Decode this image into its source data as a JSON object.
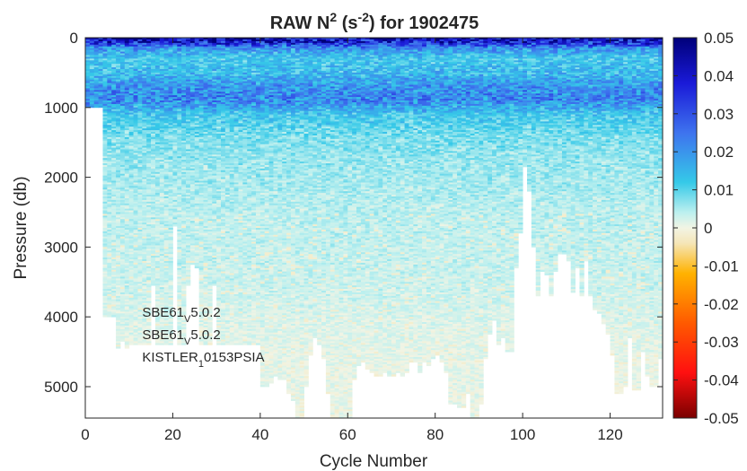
{
  "chart_data": {
    "type": "heatmap",
    "title_main": "RAW N",
    "title_sup1": "2",
    "title_paren_open": " (s",
    "title_sup2": "-2",
    "title_rest": ") for 1902475",
    "xlabel": "Cycle Number",
    "ylabel": "Pressure (db)",
    "xlim": [
      0,
      132
    ],
    "ylim": [
      0,
      5450
    ],
    "y_reversed": true,
    "x_ticks": [
      "0",
      "20",
      "40",
      "60",
      "80",
      "100",
      "120"
    ],
    "x_tick_values": [
      0,
      20,
      40,
      60,
      80,
      100,
      120
    ],
    "y_ticks": [
      "0",
      "1000",
      "2000",
      "3000",
      "4000",
      "5000"
    ],
    "y_tick_values": [
      0,
      1000,
      2000,
      3000,
      4000,
      5000
    ],
    "colorbar": {
      "range": [
        -0.05,
        0.05
      ],
      "colormap": "jet-like diverging (dark red - orange - cream - cyan - blue - dark navy)",
      "ticks": [
        "0.05",
        "0.04",
        "0.03",
        "0.02",
        "0.01",
        "0",
        "-0.01",
        "-0.02",
        "-0.03",
        "-0.04",
        "-0.05"
      ],
      "tick_values": [
        0.05,
        0.04,
        0.03,
        0.02,
        0.01,
        0,
        -0.01,
        -0.02,
        -0.03,
        -0.04,
        -0.05
      ]
    },
    "n2_profile_by_pressure": {
      "pressure": [
        0,
        50,
        150,
        300,
        500,
        700,
        900,
        1100,
        1400,
        1800,
        2500,
        3500,
        4500,
        5400
      ],
      "n2": [
        0.045,
        0.04,
        0.02,
        0.012,
        0.014,
        0.02,
        0.022,
        0.012,
        0.008,
        0.006,
        0.004,
        0.003,
        0.001,
        0.0005
      ]
    },
    "max_pressure_by_cycle": [
      1000,
      1000,
      1000,
      1000,
      4000,
      4000,
      4000,
      4450,
      4350,
      4450,
      4400,
      4400,
      4400,
      4400,
      4400,
      3550,
      4400,
      4400,
      4400,
      4400,
      2700,
      4400,
      4400,
      3550,
      3250,
      3300,
      4400,
      4400,
      4400,
      3550,
      4400,
      4400,
      4400,
      4400,
      4400,
      4400,
      4400,
      4400,
      4400,
      4400,
      5000,
      5000,
      4950,
      4850,
      4900,
      4900,
      5100,
      5200,
      5450,
      5450,
      5000,
      4550,
      4300,
      4400,
      4600,
      5100,
      5450,
      5450,
      5450,
      5450,
      5450,
      4900,
      4700,
      4650,
      4750,
      4800,
      4850,
      4850,
      4800,
      4850,
      4850,
      4800,
      4850,
      4800,
      4650,
      4650,
      4800,
      4650,
      4700,
      4600,
      4550,
      4650,
      4800,
      5250,
      5250,
      5300,
      5300,
      5100,
      5450,
      5450,
      5250,
      4600,
      4250,
      4050,
      4400,
      4300,
      4500,
      4500,
      3300,
      2800,
      1850,
      2200,
      3000,
      3700,
      3350,
      3400,
      3700,
      3350,
      3100,
      3100,
      3200,
      3650,
      3300,
      3700,
      3200,
      3700,
      3900,
      3950,
      4100,
      4250,
      4550,
      5100,
      5100,
      5000,
      4300,
      5050,
      5050,
      4500,
      4850,
      5000,
      5000,
      4600
    ],
    "annotations": [
      {
        "text": "SBE61",
        "sub": "V",
        "rest": "5.0.2",
        "x": 13,
        "y": 4000
      },
      {
        "text": "SBE61",
        "sub": "V",
        "rest": "5.0.2",
        "x": 13,
        "y": 4320
      },
      {
        "text": "KISTLER",
        "sub": "1",
        "rest": "0153PSIA",
        "x": 13,
        "y": 4640
      }
    ]
  }
}
